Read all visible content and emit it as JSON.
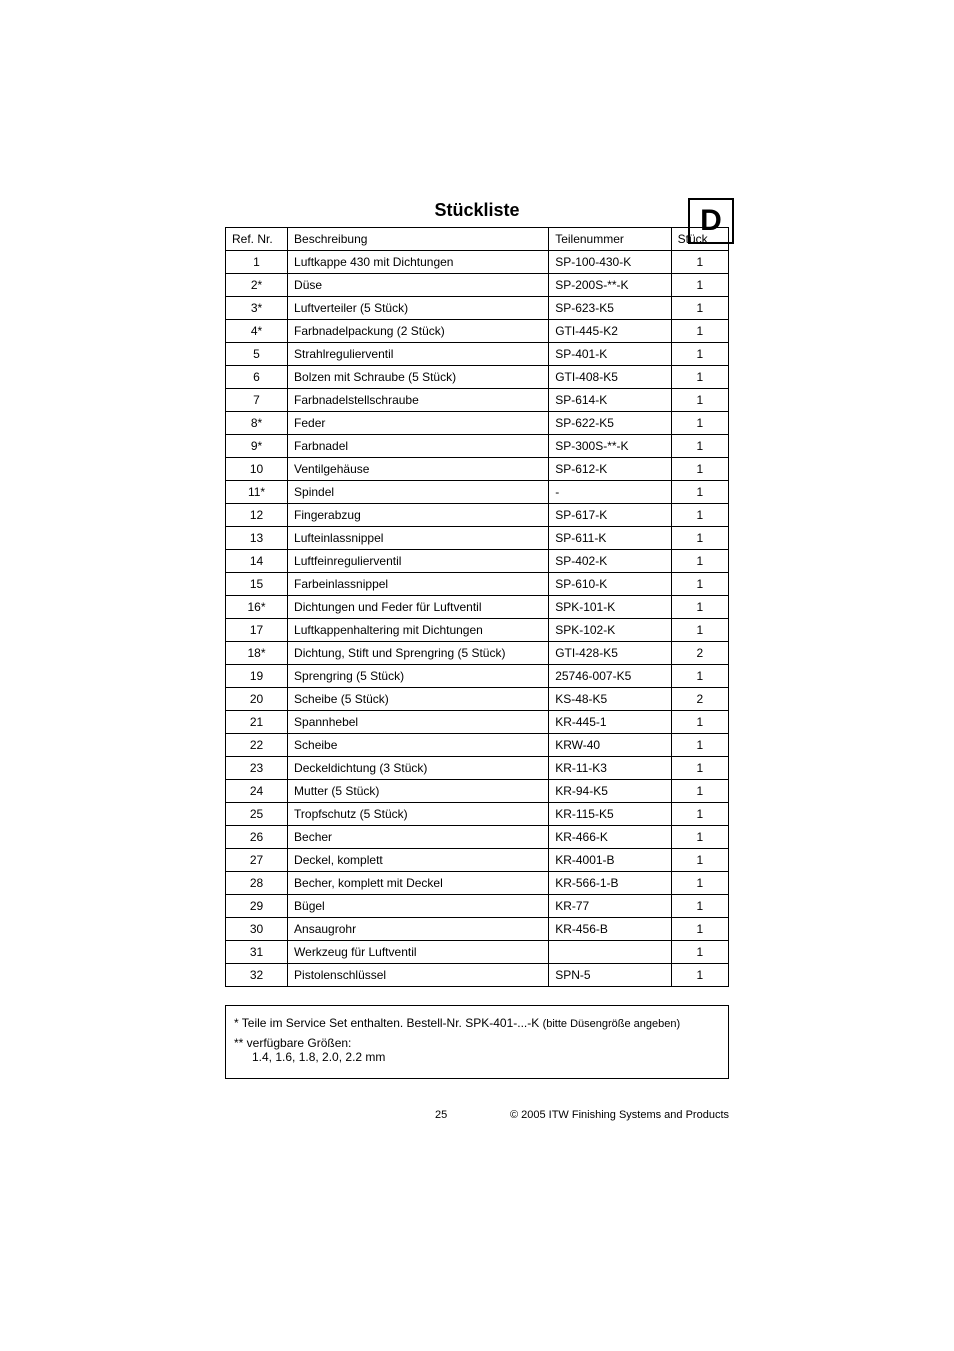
{
  "lang_indicator": "D",
  "title": "Stückliste",
  "headers": {
    "ref": "Ref. Nr.",
    "desc": "Beschreibung",
    "part": "Teilenummer",
    "qty": "Stück"
  },
  "rows": [
    {
      "ref": "1",
      "desc": "Luftkappe 430 mit Dichtungen",
      "part": "SP-100-430-K",
      "qty": "1"
    },
    {
      "ref": "2*",
      "desc": "Düse",
      "part": "SP-200S-**-K",
      "qty": "1"
    },
    {
      "ref": "3*",
      "desc": "Luftverteiler (5 Stück)",
      "part": "SP-623-K5",
      "qty": "1"
    },
    {
      "ref": "4*",
      "desc": "Farbnadelpackung (2 Stück)",
      "part": "GTI-445-K2",
      "qty": "1"
    },
    {
      "ref": "5",
      "desc": "Strahlregulierventil",
      "part": "SP-401-K",
      "qty": "1"
    },
    {
      "ref": "6",
      "desc": "Bolzen mit Schraube (5 Stück)",
      "part": "GTI-408-K5",
      "qty": "1"
    },
    {
      "ref": "7",
      "desc": "Farbnadelstellschraube",
      "part": "SP-614-K",
      "qty": "1"
    },
    {
      "ref": "8*",
      "desc": "Feder",
      "part": "SP-622-K5",
      "qty": "1"
    },
    {
      "ref": "9*",
      "desc": "Farbnadel",
      "part": "SP-300S-**-K",
      "qty": "1"
    },
    {
      "ref": "10",
      "desc": "Ventilgehäuse",
      "part": "SP-612-K",
      "qty": "1"
    },
    {
      "ref": "11*",
      "desc": "Spindel",
      "part": "-",
      "qty": "1"
    },
    {
      "ref": "12",
      "desc": "Fingerabzug",
      "part": "SP-617-K",
      "qty": "1"
    },
    {
      "ref": "13",
      "desc": "Lufteinlassnippel",
      "part": "SP-611-K",
      "qty": "1"
    },
    {
      "ref": "14",
      "desc": "Luftfeinregulierventil",
      "part": "SP-402-K",
      "qty": "1"
    },
    {
      "ref": "15",
      "desc": "Farbeinlassnippel",
      "part": "SP-610-K",
      "qty": "1"
    },
    {
      "ref": "16*",
      "desc": "Dichtungen und Feder für Luftventil",
      "part": "SPK-101-K",
      "qty": "1"
    },
    {
      "ref": "17",
      "desc": "Luftkappenhaltering mit Dichtungen",
      "part": "SPK-102-K",
      "qty": "1"
    },
    {
      "ref": "18*",
      "desc": "Dichtung, Stift und Sprengring (5 Stück)",
      "part": "GTI-428-K5",
      "qty": "2"
    },
    {
      "ref": "19",
      "desc": "Sprengring (5 Stück)",
      "part": "25746-007-K5",
      "qty": "1"
    },
    {
      "ref": "20",
      "desc": "Scheibe (5 Stück)",
      "part": "KS-48-K5",
      "qty": "2"
    },
    {
      "ref": "21",
      "desc": "Spannhebel",
      "part": "KR-445-1",
      "qty": "1"
    },
    {
      "ref": "22",
      "desc": "Scheibe",
      "part": "KRW-40",
      "qty": "1"
    },
    {
      "ref": "23",
      "desc": "Deckeldichtung (3 Stück)",
      "part": "KR-11-K3",
      "qty": "1"
    },
    {
      "ref": "24",
      "desc": "Mutter (5 Stück)",
      "part": "KR-94-K5",
      "qty": "1"
    },
    {
      "ref": "25",
      "desc": "Tropfschutz (5 Stück)",
      "part": "KR-115-K5",
      "qty": "1"
    },
    {
      "ref": "26",
      "desc": "Becher",
      "part": "KR-466-K",
      "qty": "1"
    },
    {
      "ref": "27",
      "desc": "Deckel, komplett",
      "part": "KR-4001-B",
      "qty": "1"
    },
    {
      "ref": "28",
      "desc": "Becher, komplett mit Deckel",
      "part": "KR-566-1-B",
      "qty": "1"
    },
    {
      "ref": "29",
      "desc": "Bügel",
      "part": "KR-77",
      "qty": "1"
    },
    {
      "ref": "30",
      "desc": "Ansaugrohr",
      "part": "KR-456-B",
      "qty": "1"
    },
    {
      "ref": "31",
      "desc": "Werkzeug für Luftventil",
      "part": "",
      "qty": "1"
    },
    {
      "ref": "32",
      "desc": "Pistolenschlüssel",
      "part": "SPN-5",
      "qty": "1"
    }
  ],
  "notes": {
    "star1_prefix": "*  Teile im Service Set enthalten. Bestell-Nr. SPK-401-...-K ",
    "star1_small": "(bitte Düsengröße angeben)",
    "star2_label": "** verfügbare Größen:",
    "star2_sizes": "1.4, 1.6, 1.8, 2.0, 2.2 mm"
  },
  "footer": {
    "page": "25",
    "copyright": "© 2005 ITW Finishing Systems and Products"
  }
}
